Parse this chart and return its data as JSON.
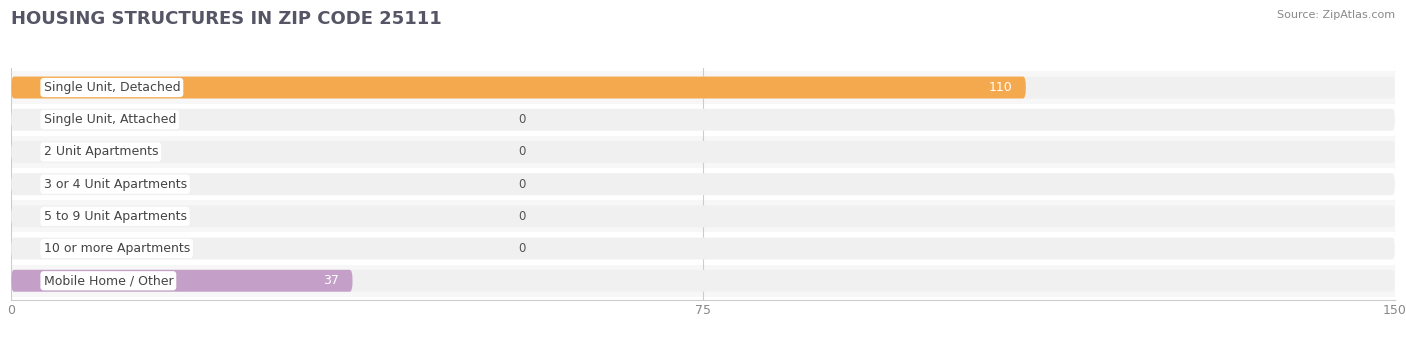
{
  "title": "HOUSING STRUCTURES IN ZIP CODE 25111",
  "source": "Source: ZipAtlas.com",
  "categories": [
    "Single Unit, Detached",
    "Single Unit, Attached",
    "2 Unit Apartments",
    "3 or 4 Unit Apartments",
    "5 to 9 Unit Apartments",
    "10 or more Apartments",
    "Mobile Home / Other"
  ],
  "values": [
    110,
    0,
    0,
    0,
    0,
    0,
    37
  ],
  "bar_colors": [
    "#F5A94E",
    "#F0968A",
    "#A8C4E0",
    "#A8C4E0",
    "#A8C4E0",
    "#A8C4E0",
    "#C4A0C8"
  ],
  "bar_bg_colors": [
    "#F0F0F0",
    "#F0F0F0",
    "#F0F0F0",
    "#F0F0F0",
    "#F0F0F0",
    "#F0F0F0",
    "#F0F0F0"
  ],
  "row_bg_colors": [
    "#F7F7F7",
    "#FFFFFF",
    "#F7F7F7",
    "#FFFFFF",
    "#F7F7F7",
    "#FFFFFF",
    "#F7F7F7"
  ],
  "xlim": [
    0,
    150
  ],
  "xticks": [
    0,
    75,
    150
  ],
  "title_fontsize": 13,
  "label_fontsize": 9,
  "value_fontsize": 8.5,
  "value_inside_fontsize": 9
}
